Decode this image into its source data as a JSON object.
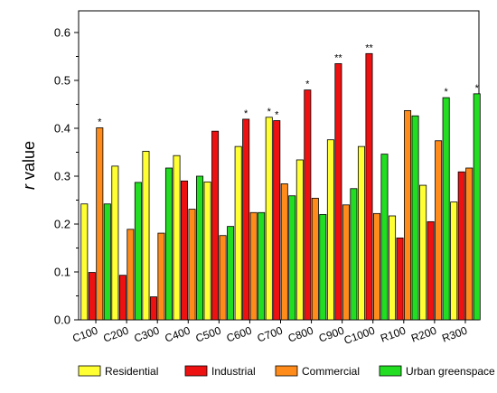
{
  "chart_data": {
    "type": "bar",
    "ylabel_italic": "r",
    "ylabel_rest": " value",
    "xlabel": "",
    "ylim": [
      0.0,
      0.6
    ],
    "yticks": [
      "0.0",
      "0.1",
      "0.2",
      "0.3",
      "0.4",
      "0.5",
      "0.6"
    ],
    "grid": false,
    "legend_position": "bottom",
    "categories": [
      "C100",
      "C200",
      "C300",
      "C400",
      "C500",
      "C600",
      "C700",
      "C800",
      "C900",
      "C1000",
      "R100",
      "R200",
      "R300"
    ],
    "series": [
      {
        "name": "Residential",
        "color": "#ffff33",
        "values": [
          0.242,
          0.321,
          0.352,
          0.343,
          0.288,
          0.362,
          0.423,
          0.334,
          0.376,
          0.362,
          0.217,
          0.281,
          0.246
        ]
      },
      {
        "name": "Industrial",
        "color": "#ee1111",
        "values": [
          0.099,
          0.093,
          0.048,
          0.29,
          0.394,
          0.419,
          0.416,
          0.48,
          0.535,
          0.556,
          0.171,
          0.205,
          0.309
        ]
      },
      {
        "name": "Commercial",
        "color": "#ff8c1a",
        "values": [
          0.401,
          0.189,
          0.181,
          0.231,
          0.176,
          0.224,
          0.284,
          0.254,
          0.24,
          0.222,
          0.437,
          0.374,
          0.317
        ]
      },
      {
        "name": "Urban greenspace",
        "color": "#22dd22",
        "values": [
          0.242,
          0.287,
          0.317,
          0.3,
          0.195,
          0.224,
          0.259,
          0.22,
          0.274,
          0.346,
          0.426,
          0.464,
          0.472
        ]
      }
    ],
    "significance": [
      {
        "category": "C100",
        "series": "Commercial",
        "label": "*"
      },
      {
        "category": "C600",
        "series": "Industrial",
        "label": "*"
      },
      {
        "category": "C700",
        "series": "Residential",
        "label": "*"
      },
      {
        "category": "C700",
        "series": "Industrial",
        "label": "*"
      },
      {
        "category": "C800",
        "series": "Industrial",
        "label": "*"
      },
      {
        "category": "C900",
        "series": "Industrial",
        "label": "**"
      },
      {
        "category": "C1000",
        "series": "Industrial",
        "label": "**"
      },
      {
        "category": "R200",
        "series": "Urban greenspace",
        "label": "*"
      },
      {
        "category": "R300",
        "series": "Urban greenspace",
        "label": "*"
      }
    ]
  }
}
